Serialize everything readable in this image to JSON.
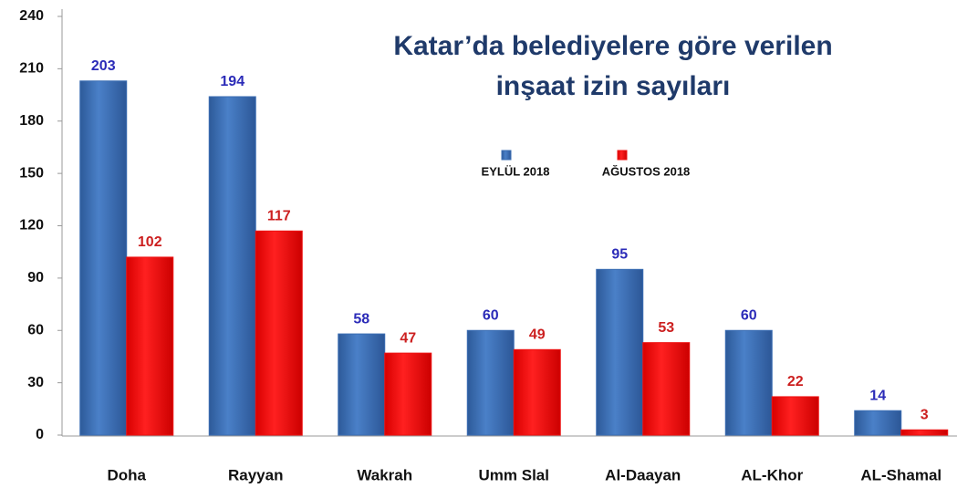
{
  "chart_data": {
    "type": "bar",
    "title": [
      "Katar’da belediyelere göre verilen",
      "inşaat izin sayıları"
    ],
    "categories": [
      "Doha",
      "Rayyan",
      "Wakrah",
      "Umm Slal",
      "Al-Daayan",
      "AL-Khor",
      "AL-Shamal"
    ],
    "series": [
      {
        "name": "EYLÜL 2018",
        "color": "#3a6db3",
        "label_color": "#2b2bb8",
        "values": [
          203,
          194,
          58,
          60,
          95,
          60,
          14
        ]
      },
      {
        "name": "AĞUSTOS 2018",
        "color": "#ee1010",
        "label_color": "#cc1f1f",
        "values": [
          102,
          117,
          47,
          49,
          53,
          22,
          3
        ]
      }
    ],
    "ylim": [
      0,
      240
    ],
    "yticks": [
      0,
      30,
      60,
      90,
      120,
      150,
      180,
      210,
      240
    ],
    "grid": false
  }
}
